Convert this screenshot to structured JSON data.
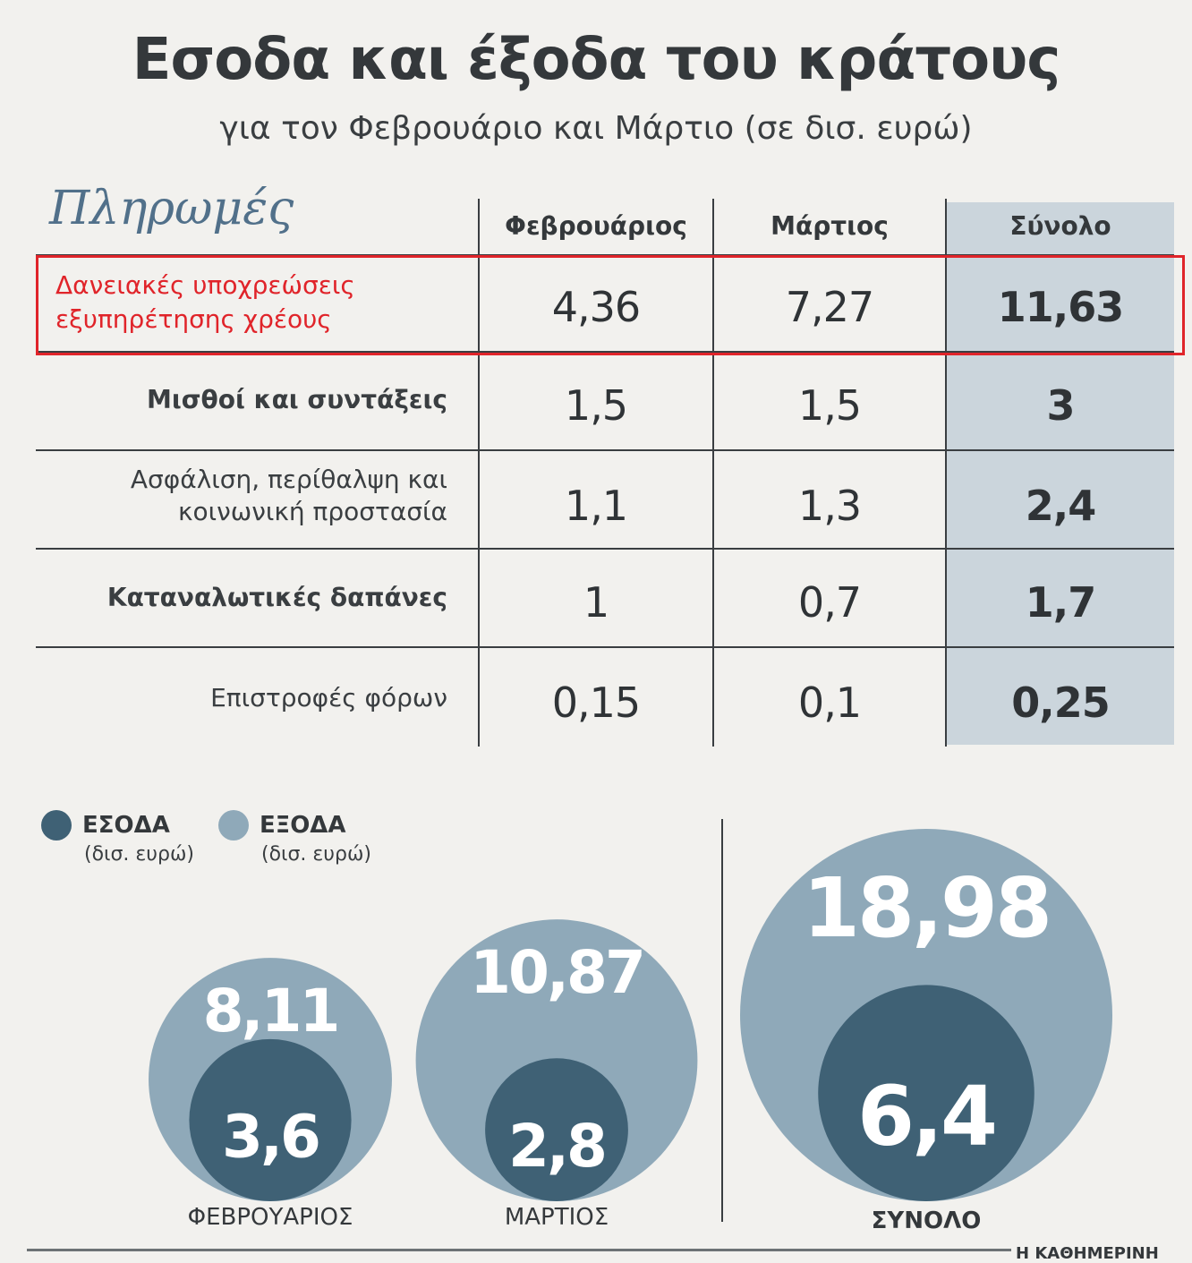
{
  "title": "Εσοδα και έξοδα του κράτους",
  "subtitle": "για τον Φεβρουάριο και Μάρτιο (σε δισ. ευρώ)",
  "table": {
    "title": "Πληρωμές",
    "columns": [
      "Φεβρουάριος",
      "Μάρτιος",
      "Σύνολο"
    ],
    "rows": [
      {
        "label": "Δανειακές υποχρεώσεις εξυπηρέτησης χρέους",
        "values": [
          "4,36",
          "7,27",
          "11,63"
        ]
      },
      {
        "label": "Μισθοί και συντάξεις",
        "values": [
          "1,5",
          "1,5",
          "3"
        ]
      },
      {
        "label": "Ασφάλιση, περίθαλψη και κοινωνική προστασία",
        "values": [
          "1,1",
          "1,3",
          "2,4"
        ]
      },
      {
        "label": "Καταναλωτικές δαπάνες",
        "values": [
          "1",
          "0,7",
          "1,7"
        ]
      },
      {
        "label": "Επιστροφές φόρων",
        "values": [
          "0,15",
          "0,1",
          "0,25"
        ]
      }
    ]
  },
  "legend": {
    "income": {
      "name": "ΕΣΟΔΑ",
      "unit": "(δισ. ευρώ)"
    },
    "expenses": {
      "name": "ΕΞΟΔΑ",
      "unit": "(δισ. ευρώ)"
    }
  },
  "colors": {
    "income": "#3f6175",
    "expenses": "#8fa9b9",
    "highlight": "#e0242a",
    "total_column": "#cbd5dc"
  },
  "credit": "Η ΚΑΘΗΜΕΡΙΝΗ",
  "chart_data": [
    {
      "type": "table",
      "title": "Πληρωμές",
      "columns": [
        "Φεβρουάριος",
        "Μάρτιος",
        "Σύνολο"
      ],
      "rows": [
        {
          "label": "Δανειακές υποχρεώσεις εξυπηρέτησης χρέους",
          "values": [
            4.36,
            7.27,
            11.63
          ]
        },
        {
          "label": "Μισθοί και συντάξεις",
          "values": [
            1.5,
            1.5,
            3
          ]
        },
        {
          "label": "Ασφάλιση, περίθαλψη και κοινωνική προστασία",
          "values": [
            1.1,
            1.3,
            2.4
          ]
        },
        {
          "label": "Καταναλωτικές δαπάνες",
          "values": [
            1,
            0.7,
            1.7
          ]
        },
        {
          "label": "Επιστροφές φόρων",
          "values": [
            0.15,
            0.1,
            0.25
          ]
        }
      ]
    },
    {
      "type": "bubble",
      "categories": [
        "ΦΕΒΡΟΥΑΡΙΟΣ",
        "ΜΑΡΤΙΟΣ",
        "ΣΥΝΟΛΟ"
      ],
      "series": [
        {
          "name": "ΕΞΟΔΑ",
          "values": [
            8.11,
            10.87,
            18.98
          ],
          "labels": [
            "8,11",
            "10,87",
            "18,98"
          ]
        },
        {
          "name": "ΕΣΟΔΑ",
          "values": [
            3.6,
            2.8,
            6.4
          ],
          "labels": [
            "3,6",
            "2,8",
            "6,4"
          ]
        }
      ]
    }
  ]
}
